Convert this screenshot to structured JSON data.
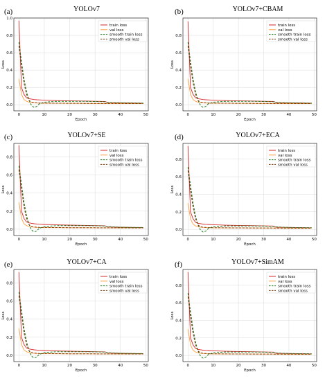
{
  "figure": {
    "axis_labels": {
      "x": "Epoch",
      "y": "Loss"
    },
    "legend": [
      "train loss",
      "val loss",
      "smooth train loss",
      "smooth val loss"
    ],
    "series_colors": {
      "train loss": "#d62728",
      "val loss": "#ff9f40",
      "smooth train loss": "#1a7a1a",
      "smooth val loss": "#7a3b10"
    }
  },
  "chart_data": [
    {
      "type": "line",
      "letter": "(a)",
      "title": "YOLOv7",
      "xlabel": "Epoch",
      "ylabel": "Loss",
      "xlim": [
        -2,
        51
      ],
      "ylim": [
        -0.07,
        1.0
      ],
      "xticks": [
        0,
        10,
        20,
        30,
        40,
        50
      ],
      "yticks": [
        0.0,
        0.2,
        0.4,
        0.6,
        0.8,
        1.0
      ],
      "ytick_labels": [
        "0.0",
        "0.2",
        "0.4",
        "0.6",
        "0.8",
        "1.0"
      ],
      "grid": true,
      "legend_position": "top-right",
      "x": [
        0,
        1,
        2,
        3,
        4,
        5,
        6,
        7,
        8,
        10,
        15,
        20,
        25,
        30,
        34,
        35,
        40,
        45,
        49
      ],
      "series": [
        {
          "name": "train loss",
          "values": [
            0.97,
            0.2,
            0.12,
            0.08,
            0.07,
            0.065,
            0.06,
            0.058,
            0.056,
            0.053,
            0.048,
            0.045,
            0.043,
            0.04,
            0.038,
            0.025,
            0.022,
            0.02,
            0.018
          ]
        },
        {
          "name": "val loss",
          "values": [
            0.3,
            0.12,
            0.06,
            0.04,
            0.03,
            0.025,
            0.022,
            0.02,
            0.019,
            0.018,
            0.017,
            0.016,
            0.016,
            0.015,
            0.015,
            0.015,
            0.014,
            0.014,
            0.014
          ]
        },
        {
          "name": "smooth train loss",
          "values": [
            0.72,
            0.5,
            0.3,
            0.15,
            0.05,
            -0.01,
            -0.03,
            -0.02,
            0.01,
            0.03,
            0.04,
            0.04,
            0.04,
            0.038,
            0.035,
            0.028,
            0.022,
            0.02,
            0.019
          ]
        },
        {
          "name": "smooth val loss",
          "values": [
            0.68,
            0.45,
            0.25,
            0.12,
            0.05,
            0.03,
            0.025,
            0.022,
            0.02,
            0.019,
            0.018,
            0.017,
            0.016,
            0.016,
            0.015,
            0.015,
            0.015,
            0.014,
            0.014
          ]
        }
      ]
    },
    {
      "type": "line",
      "letter": "(b)",
      "title": "YOLOv7+CBAM",
      "xlabel": "Epoch",
      "ylabel": "Loss",
      "xlim": [
        -2,
        51
      ],
      "ylim": [
        -0.07,
        1.0
      ],
      "xticks": [
        0,
        10,
        20,
        30,
        40,
        50
      ],
      "yticks": [
        0.0,
        0.2,
        0.4,
        0.6,
        0.8
      ],
      "ytick_labels": [
        "0.0",
        "0.2",
        "0.4",
        "0.6",
        "0.8"
      ],
      "grid": true,
      "legend_position": "top-right",
      "x": [
        0,
        1,
        2,
        3,
        4,
        5,
        6,
        7,
        8,
        10,
        15,
        20,
        25,
        30,
        34,
        35,
        40,
        45,
        49
      ],
      "series": [
        {
          "name": "train loss",
          "values": [
            0.96,
            0.2,
            0.12,
            0.08,
            0.07,
            0.065,
            0.06,
            0.058,
            0.056,
            0.053,
            0.048,
            0.045,
            0.043,
            0.04,
            0.038,
            0.025,
            0.022,
            0.02,
            0.018
          ]
        },
        {
          "name": "val loss",
          "values": [
            0.3,
            0.12,
            0.06,
            0.04,
            0.03,
            0.025,
            0.022,
            0.02,
            0.019,
            0.018,
            0.017,
            0.016,
            0.016,
            0.015,
            0.015,
            0.015,
            0.014,
            0.014,
            0.014
          ]
        },
        {
          "name": "smooth train loss",
          "values": [
            0.72,
            0.5,
            0.3,
            0.15,
            0.05,
            -0.01,
            -0.03,
            -0.02,
            0.01,
            0.03,
            0.04,
            0.04,
            0.04,
            0.038,
            0.035,
            0.028,
            0.022,
            0.02,
            0.019
          ]
        },
        {
          "name": "smooth val loss",
          "values": [
            0.68,
            0.45,
            0.25,
            0.12,
            0.05,
            0.03,
            0.025,
            0.022,
            0.02,
            0.019,
            0.018,
            0.017,
            0.016,
            0.016,
            0.015,
            0.015,
            0.015,
            0.014,
            0.014
          ]
        }
      ]
    },
    {
      "type": "line",
      "letter": "(c)",
      "title": "YOLOv7+SE",
      "xlabel": "Epoch",
      "ylabel": "Loss",
      "xlim": [
        -2,
        51
      ],
      "ylim": [
        -0.07,
        0.95
      ],
      "xticks": [
        0,
        10,
        20,
        30,
        40,
        50
      ],
      "yticks": [
        0.0,
        0.2,
        0.4,
        0.6,
        0.8
      ],
      "ytick_labels": [
        "0.0",
        "0.2",
        "0.4",
        "0.6",
        "0.8"
      ],
      "grid": true,
      "legend_position": "top-right",
      "x": [
        0,
        1,
        2,
        3,
        4,
        5,
        6,
        7,
        8,
        10,
        15,
        20,
        25,
        30,
        34,
        35,
        40,
        45,
        49
      ],
      "series": [
        {
          "name": "train loss",
          "values": [
            0.93,
            0.2,
            0.12,
            0.08,
            0.07,
            0.065,
            0.06,
            0.058,
            0.056,
            0.053,
            0.048,
            0.045,
            0.043,
            0.04,
            0.038,
            0.025,
            0.022,
            0.02,
            0.018
          ]
        },
        {
          "name": "val loss",
          "values": [
            0.3,
            0.12,
            0.06,
            0.04,
            0.03,
            0.025,
            0.022,
            0.02,
            0.019,
            0.018,
            0.017,
            0.016,
            0.016,
            0.015,
            0.015,
            0.015,
            0.014,
            0.014,
            0.014
          ]
        },
        {
          "name": "smooth train loss",
          "values": [
            0.7,
            0.5,
            0.3,
            0.15,
            0.05,
            -0.01,
            -0.03,
            -0.02,
            0.01,
            0.03,
            0.04,
            0.04,
            0.04,
            0.038,
            0.035,
            0.028,
            0.022,
            0.02,
            0.019
          ]
        },
        {
          "name": "smooth val loss",
          "values": [
            0.66,
            0.45,
            0.25,
            0.12,
            0.05,
            0.03,
            0.025,
            0.022,
            0.02,
            0.019,
            0.018,
            0.017,
            0.016,
            0.016,
            0.015,
            0.015,
            0.015,
            0.014,
            0.014
          ]
        }
      ]
    },
    {
      "type": "line",
      "letter": "(d)",
      "title": "YOLOv7+ECA",
      "xlabel": "Epoch",
      "ylabel": "Loss",
      "xlim": [
        -2,
        51
      ],
      "ylim": [
        -0.07,
        0.98
      ],
      "xticks": [
        0,
        10,
        20,
        30,
        40,
        50
      ],
      "yticks": [
        0.0,
        0.2,
        0.4,
        0.6,
        0.8
      ],
      "ytick_labels": [
        "0.0",
        "0.2",
        "0.4",
        "0.6",
        "0.8"
      ],
      "grid": true,
      "legend_position": "top-right",
      "x": [
        0,
        1,
        2,
        3,
        4,
        5,
        6,
        7,
        8,
        10,
        15,
        20,
        25,
        30,
        34,
        35,
        40,
        45,
        49
      ],
      "series": [
        {
          "name": "train loss",
          "values": [
            0.95,
            0.2,
            0.12,
            0.08,
            0.07,
            0.065,
            0.06,
            0.058,
            0.056,
            0.053,
            0.048,
            0.045,
            0.043,
            0.04,
            0.038,
            0.025,
            0.022,
            0.02,
            0.018
          ]
        },
        {
          "name": "val loss",
          "values": [
            0.3,
            0.12,
            0.06,
            0.04,
            0.03,
            0.025,
            0.022,
            0.02,
            0.019,
            0.018,
            0.017,
            0.016,
            0.016,
            0.015,
            0.015,
            0.015,
            0.014,
            0.014,
            0.014
          ]
        },
        {
          "name": "smooth train loss",
          "values": [
            0.71,
            0.5,
            0.3,
            0.15,
            0.05,
            -0.01,
            -0.03,
            -0.02,
            0.01,
            0.03,
            0.04,
            0.04,
            0.04,
            0.038,
            0.035,
            0.028,
            0.022,
            0.02,
            0.019
          ]
        },
        {
          "name": "smooth val loss",
          "values": [
            0.67,
            0.45,
            0.25,
            0.12,
            0.05,
            0.03,
            0.025,
            0.022,
            0.02,
            0.019,
            0.018,
            0.017,
            0.016,
            0.016,
            0.015,
            0.015,
            0.015,
            0.014,
            0.014
          ]
        }
      ]
    },
    {
      "type": "line",
      "letter": "(e)",
      "title": "YOLOv7+CA",
      "xlabel": "Epoch",
      "ylabel": "Loss",
      "xlim": [
        -2,
        51
      ],
      "ylim": [
        -0.07,
        0.95
      ],
      "xticks": [
        0,
        10,
        20,
        30,
        40,
        50
      ],
      "yticks": [
        0.0,
        0.2,
        0.4,
        0.6,
        0.8
      ],
      "ytick_labels": [
        "0.0",
        "0.2",
        "0.4",
        "0.6",
        "0.8"
      ],
      "grid": true,
      "legend_position": "top-right",
      "x": [
        0,
        1,
        2,
        3,
        4,
        5,
        6,
        7,
        8,
        10,
        15,
        20,
        25,
        30,
        34,
        35,
        40,
        45,
        49
      ],
      "series": [
        {
          "name": "train loss",
          "values": [
            0.92,
            0.2,
            0.12,
            0.08,
            0.07,
            0.065,
            0.06,
            0.058,
            0.056,
            0.053,
            0.048,
            0.045,
            0.043,
            0.04,
            0.038,
            0.025,
            0.022,
            0.02,
            0.018
          ]
        },
        {
          "name": "val loss",
          "values": [
            0.3,
            0.12,
            0.06,
            0.04,
            0.03,
            0.025,
            0.022,
            0.02,
            0.019,
            0.018,
            0.017,
            0.016,
            0.016,
            0.015,
            0.015,
            0.015,
            0.014,
            0.014,
            0.014
          ]
        },
        {
          "name": "smooth train loss",
          "values": [
            0.7,
            0.5,
            0.3,
            0.15,
            0.05,
            -0.01,
            -0.03,
            -0.02,
            0.01,
            0.03,
            0.04,
            0.04,
            0.04,
            0.038,
            0.035,
            0.028,
            0.022,
            0.02,
            0.019
          ]
        },
        {
          "name": "smooth val loss",
          "values": [
            0.66,
            0.45,
            0.25,
            0.12,
            0.05,
            0.03,
            0.025,
            0.022,
            0.02,
            0.019,
            0.018,
            0.017,
            0.016,
            0.016,
            0.015,
            0.015,
            0.015,
            0.014,
            0.014
          ]
        }
      ]
    },
    {
      "type": "line",
      "letter": "(f)",
      "title": "YOLOv7+SimAM",
      "xlabel": "Epoch",
      "ylabel": "Loss",
      "xlim": [
        -2,
        51
      ],
      "ylim": [
        -0.07,
        0.98
      ],
      "xticks": [
        0,
        10,
        20,
        30,
        40,
        50
      ],
      "yticks": [
        0.0,
        0.2,
        0.4,
        0.6,
        0.8
      ],
      "ytick_labels": [
        "0.0",
        "0.2",
        "0.4",
        "0.6",
        "0.8"
      ],
      "grid": true,
      "legend_position": "top-right",
      "x": [
        0,
        1,
        2,
        3,
        4,
        5,
        6,
        7,
        8,
        10,
        15,
        20,
        25,
        30,
        34,
        35,
        40,
        45,
        49
      ],
      "series": [
        {
          "name": "train loss",
          "values": [
            0.95,
            0.2,
            0.12,
            0.08,
            0.07,
            0.065,
            0.06,
            0.058,
            0.056,
            0.053,
            0.048,
            0.045,
            0.043,
            0.04,
            0.038,
            0.025,
            0.022,
            0.02,
            0.018
          ]
        },
        {
          "name": "val loss",
          "values": [
            0.3,
            0.12,
            0.06,
            0.04,
            0.03,
            0.025,
            0.022,
            0.02,
            0.019,
            0.018,
            0.017,
            0.016,
            0.016,
            0.015,
            0.015,
            0.015,
            0.014,
            0.014,
            0.014
          ]
        },
        {
          "name": "smooth train loss",
          "values": [
            0.71,
            0.5,
            0.3,
            0.15,
            0.05,
            -0.01,
            -0.03,
            -0.02,
            0.01,
            0.03,
            0.04,
            0.04,
            0.04,
            0.038,
            0.035,
            0.028,
            0.022,
            0.02,
            0.019
          ]
        },
        {
          "name": "smooth val loss",
          "values": [
            0.67,
            0.45,
            0.25,
            0.12,
            0.05,
            0.03,
            0.025,
            0.022,
            0.02,
            0.019,
            0.018,
            0.017,
            0.016,
            0.016,
            0.015,
            0.015,
            0.015,
            0.014,
            0.014
          ]
        }
      ]
    }
  ]
}
